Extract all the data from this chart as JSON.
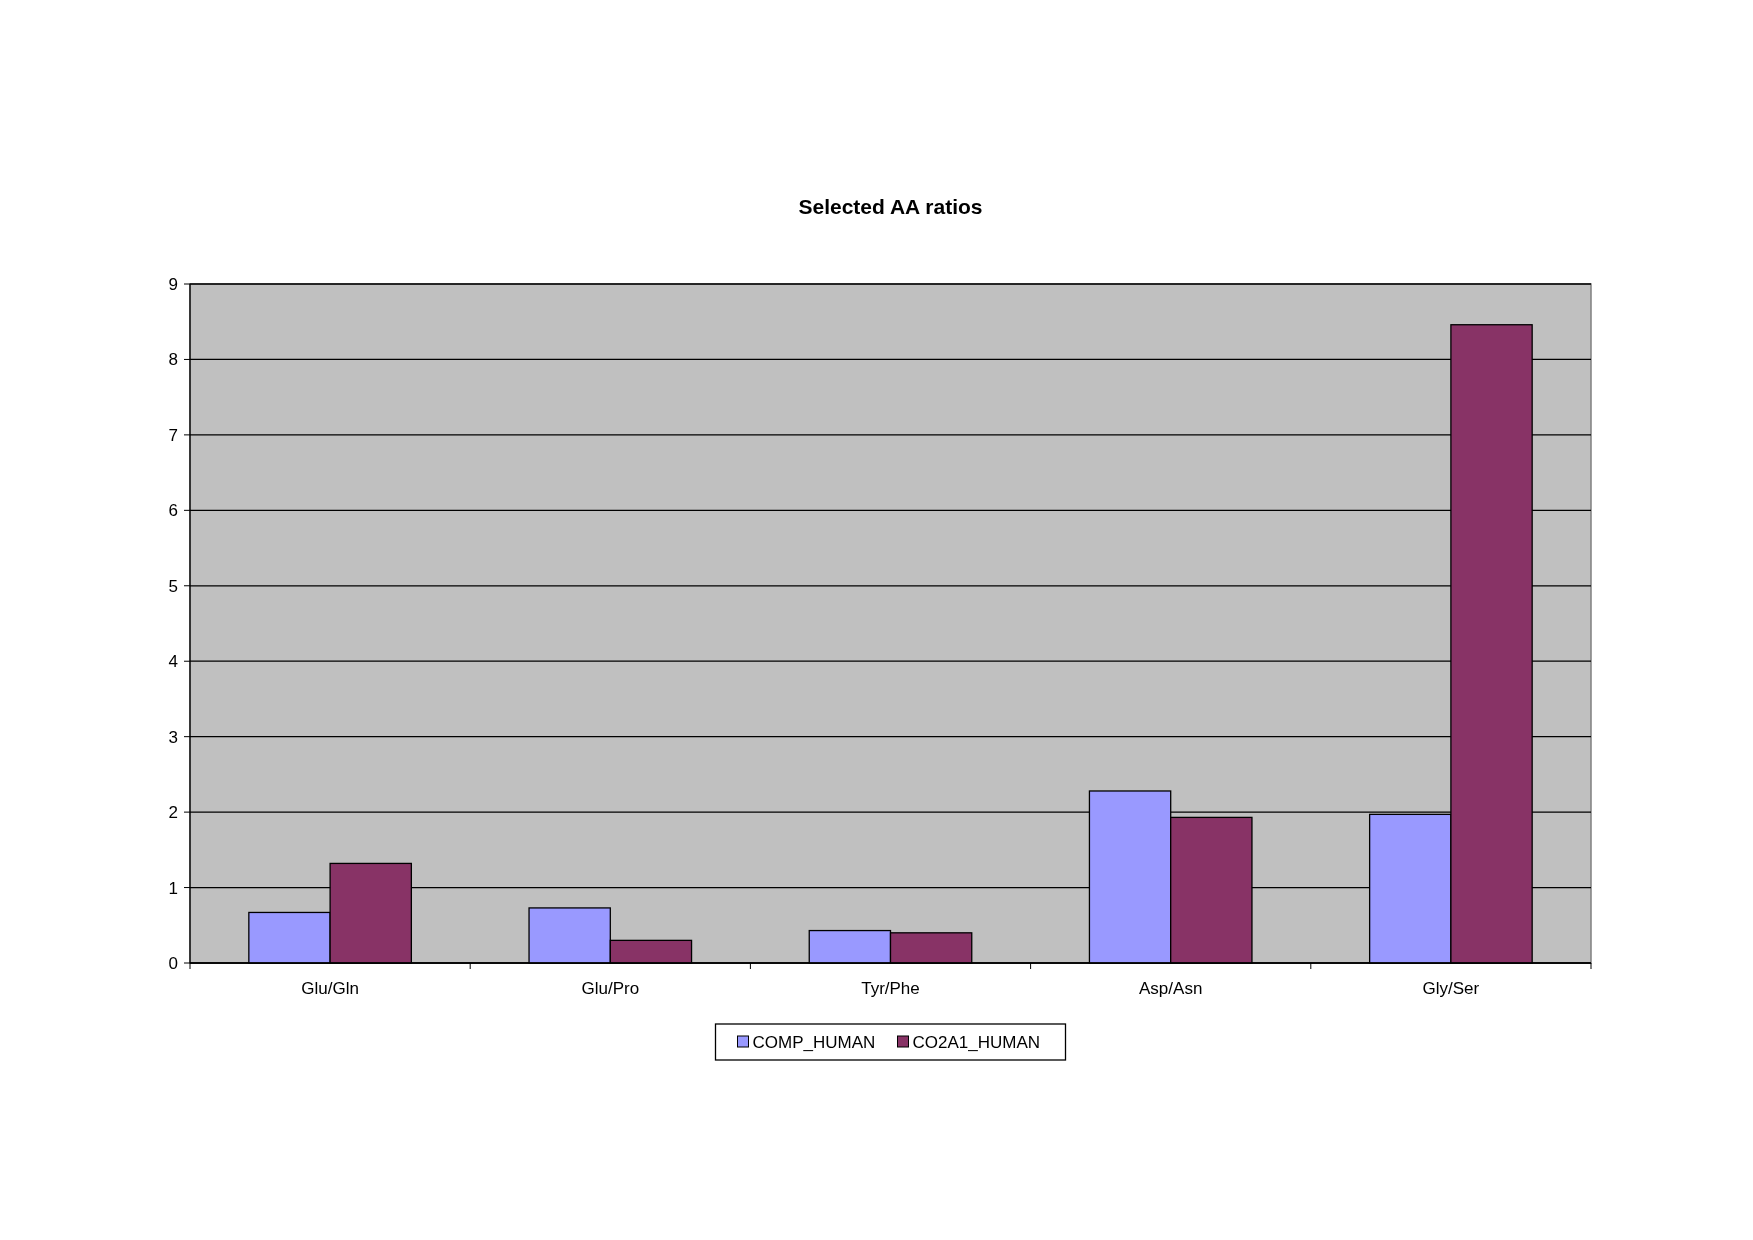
{
  "chart_data": {
    "type": "bar",
    "title": "Selected AA ratios",
    "categories": [
      "Glu/Gln",
      "Glu/Pro",
      "Tyr/Phe",
      "Asp/Asn",
      "Gly/Ser"
    ],
    "series": [
      {
        "name": "COMP_HUMAN",
        "color": "#9999ff",
        "values": [
          0.67,
          0.73,
          0.43,
          2.28,
          1.97
        ]
      },
      {
        "name": "CO2A1_HUMAN",
        "color": "#883366",
        "values": [
          1.32,
          0.3,
          0.4,
          1.93,
          8.46
        ]
      }
    ],
    "ylim": [
      0,
      9
    ],
    "yticks": [
      0,
      1,
      2,
      3,
      4,
      5,
      6,
      7,
      8,
      9
    ],
    "grid": "y",
    "legend": "bottom"
  }
}
